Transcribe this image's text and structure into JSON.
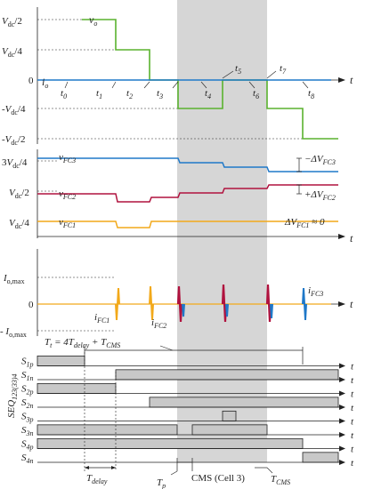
{
  "colors": {
    "vo": "#5ab22e",
    "io": "#1f78c8",
    "vFC3": "#1f78c8",
    "vFC2": "#b0123e",
    "vFC1": "#f2a91a",
    "shade": "#d6d6d6",
    "switch_fill": "#c8c8c8"
  },
  "panel_vo": {
    "ytick_labels": [
      "V_dc/2",
      "V_dc/4",
      "0",
      "-V_dc/4",
      "-V_dc/2"
    ],
    "signal_labels": [
      "v_o",
      "i_o"
    ],
    "time_labels": [
      "t_0",
      "t_1",
      "t_2",
      "t_3",
      "t_4",
      "t_5",
      "t_6",
      "t_7",
      "t_8"
    ],
    "axis_label": "t"
  },
  "panel_vfc": {
    "ytick_labels": [
      "3V_dc/4",
      "V_dc/2",
      "V_dc/4"
    ],
    "signal_labels": [
      "v_FC3",
      "v_FC2",
      "v_FC1"
    ],
    "annotations": [
      "−ΔV_FC3",
      "+ΔV_FC2",
      "ΔV_FC1 ≈ 0"
    ],
    "axis_label": "t"
  },
  "panel_ifc": {
    "ytick_labels": [
      "I_o,max",
      "0",
      "- I_o,max"
    ],
    "signal_labels": [
      "i_FC1",
      "i_FC2",
      "i_FC3"
    ],
    "axis_label": "t"
  },
  "panel_switch": {
    "equation": "T_t = 4T_delay + T_CMS",
    "vertical_label": "SEQ_123(33)4",
    "rows": [
      "S_1p",
      "S_1n",
      "S_2p",
      "S_2n",
      "S_3p",
      "S_3n",
      "S_4p",
      "S_4n"
    ],
    "axis_label": "t",
    "bottom_labels": {
      "T_delay": "T_delay",
      "T_p": "T_p",
      "cms": "CMS (Cell 3)",
      "T_CMS": "T_CMS"
    }
  }
}
